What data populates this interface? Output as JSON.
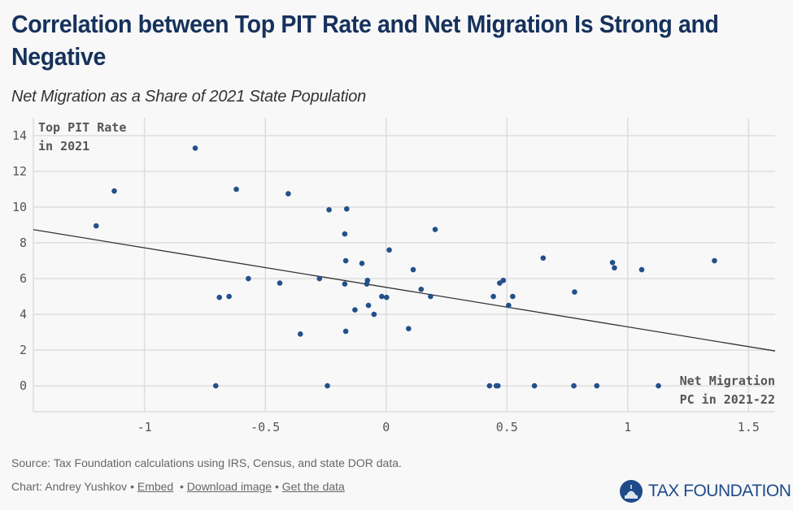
{
  "header": {
    "title": "Correlation between Top PIT Rate and Net Migration Is Strong and Negative",
    "subtitle": "Net Migration as a Share of 2021 State Population"
  },
  "footer": {
    "source": "Source: Tax Foundation calculations using IRS, Census, and state DOR data.",
    "chart_by": "Chart: Andrey Yushkov",
    "separator": "•",
    "links": [
      "Embed",
      "Download image",
      "Get the data"
    ],
    "logo_text": "TAX FOUNDATION"
  },
  "colors": {
    "title": "#16325c",
    "point": "#23508a",
    "trend": "#333333",
    "grid": "#dddddd",
    "logo": "#1f4a8a"
  },
  "chart_data": {
    "type": "scatter",
    "title": "Correlation between Top PIT Rate and Net Migration Is Strong and Negative",
    "subtitle": "Net Migration as a Share of 2021 State Population",
    "xlabel": "Net Migration PC in 2021-22",
    "xlabel_lines": [
      "Net Migration",
      "PC in 2021-22"
    ],
    "ylabel": "Top PIT Rate in 2021",
    "ylabel_lines": [
      "Top PIT Rate",
      "in 2021"
    ],
    "xlim": [
      -1.46,
      1.61
    ],
    "ylim": [
      -1.45,
      15.0
    ],
    "xticks": [
      -1,
      -0.5,
      0,
      0.5,
      1,
      1.5
    ],
    "xtick_labels": [
      "-1",
      "-0.5",
      "0",
      "0.5",
      "1",
      "1.5"
    ],
    "yticks": [
      0,
      2,
      4,
      6,
      8,
      10,
      12,
      14
    ],
    "ytick_labels": [
      "0",
      "2",
      "4",
      "6",
      "8",
      "10",
      "12",
      "14"
    ],
    "grid": true,
    "points": [
      {
        "x": -1.2,
        "y": 8.95
      },
      {
        "x": -1.125,
        "y": 10.9
      },
      {
        "x": -0.79,
        "y": 13.3
      },
      {
        "x": -0.62,
        "y": 11.0
      },
      {
        "x": -0.57,
        "y": 6.0
      },
      {
        "x": -0.44,
        "y": 5.75
      },
      {
        "x": -0.405,
        "y": 10.75
      },
      {
        "x": -0.236,
        "y": 9.85
      },
      {
        "x": -0.163,
        "y": 9.9
      },
      {
        "x": -0.171,
        "y": 8.5
      },
      {
        "x": 0.013,
        "y": 7.6
      },
      {
        "x": -0.167,
        "y": 7.0
      },
      {
        "x": -0.1,
        "y": 6.85
      },
      {
        "x": -0.276,
        "y": 6.0
      },
      {
        "x": -0.171,
        "y": 5.7
      },
      {
        "x": -0.077,
        "y": 5.9
      },
      {
        "x": -0.08,
        "y": 5.7
      },
      {
        "x": -0.69,
        "y": 4.95
      },
      {
        "x": -0.65,
        "y": 5.0
      },
      {
        "x": -0.018,
        "y": 5.0
      },
      {
        "x": 0.002,
        "y": 4.95
      },
      {
        "x": -0.129,
        "y": 4.25
      },
      {
        "x": -0.073,
        "y": 4.5
      },
      {
        "x": -0.05,
        "y": 4.0
      },
      {
        "x": -0.355,
        "y": 2.9
      },
      {
        "x": -0.167,
        "y": 3.05
      },
      {
        "x": 0.093,
        "y": 3.2
      },
      {
        "x": 0.203,
        "y": 8.75
      },
      {
        "x": 0.112,
        "y": 6.5
      },
      {
        "x": 0.145,
        "y": 5.4
      },
      {
        "x": 0.184,
        "y": 5.0
      },
      {
        "x": 0.444,
        "y": 5.0
      },
      {
        "x": 0.47,
        "y": 5.75
      },
      {
        "x": 0.485,
        "y": 5.9
      },
      {
        "x": 0.507,
        "y": 4.5
      },
      {
        "x": 0.524,
        "y": 5.0
      },
      {
        "x": 0.65,
        "y": 7.15
      },
      {
        "x": 0.78,
        "y": 5.25
      },
      {
        "x": 0.937,
        "y": 6.9
      },
      {
        "x": 0.945,
        "y": 6.6
      },
      {
        "x": 1.058,
        "y": 6.5
      },
      {
        "x": 1.359,
        "y": 7.0
      },
      {
        "x": -0.705,
        "y": 0
      },
      {
        "x": -0.243,
        "y": 0
      },
      {
        "x": 0.428,
        "y": 0
      },
      {
        "x": 0.456,
        "y": 0
      },
      {
        "x": 0.463,
        "y": 0
      },
      {
        "x": 0.614,
        "y": 0
      },
      {
        "x": 0.777,
        "y": 0
      },
      {
        "x": 0.872,
        "y": 0
      },
      {
        "x": 1.127,
        "y": 0
      }
    ],
    "trendline": {
      "x": [
        -1.46,
        1.61
      ],
      "y": [
        8.74,
        1.95
      ]
    }
  }
}
